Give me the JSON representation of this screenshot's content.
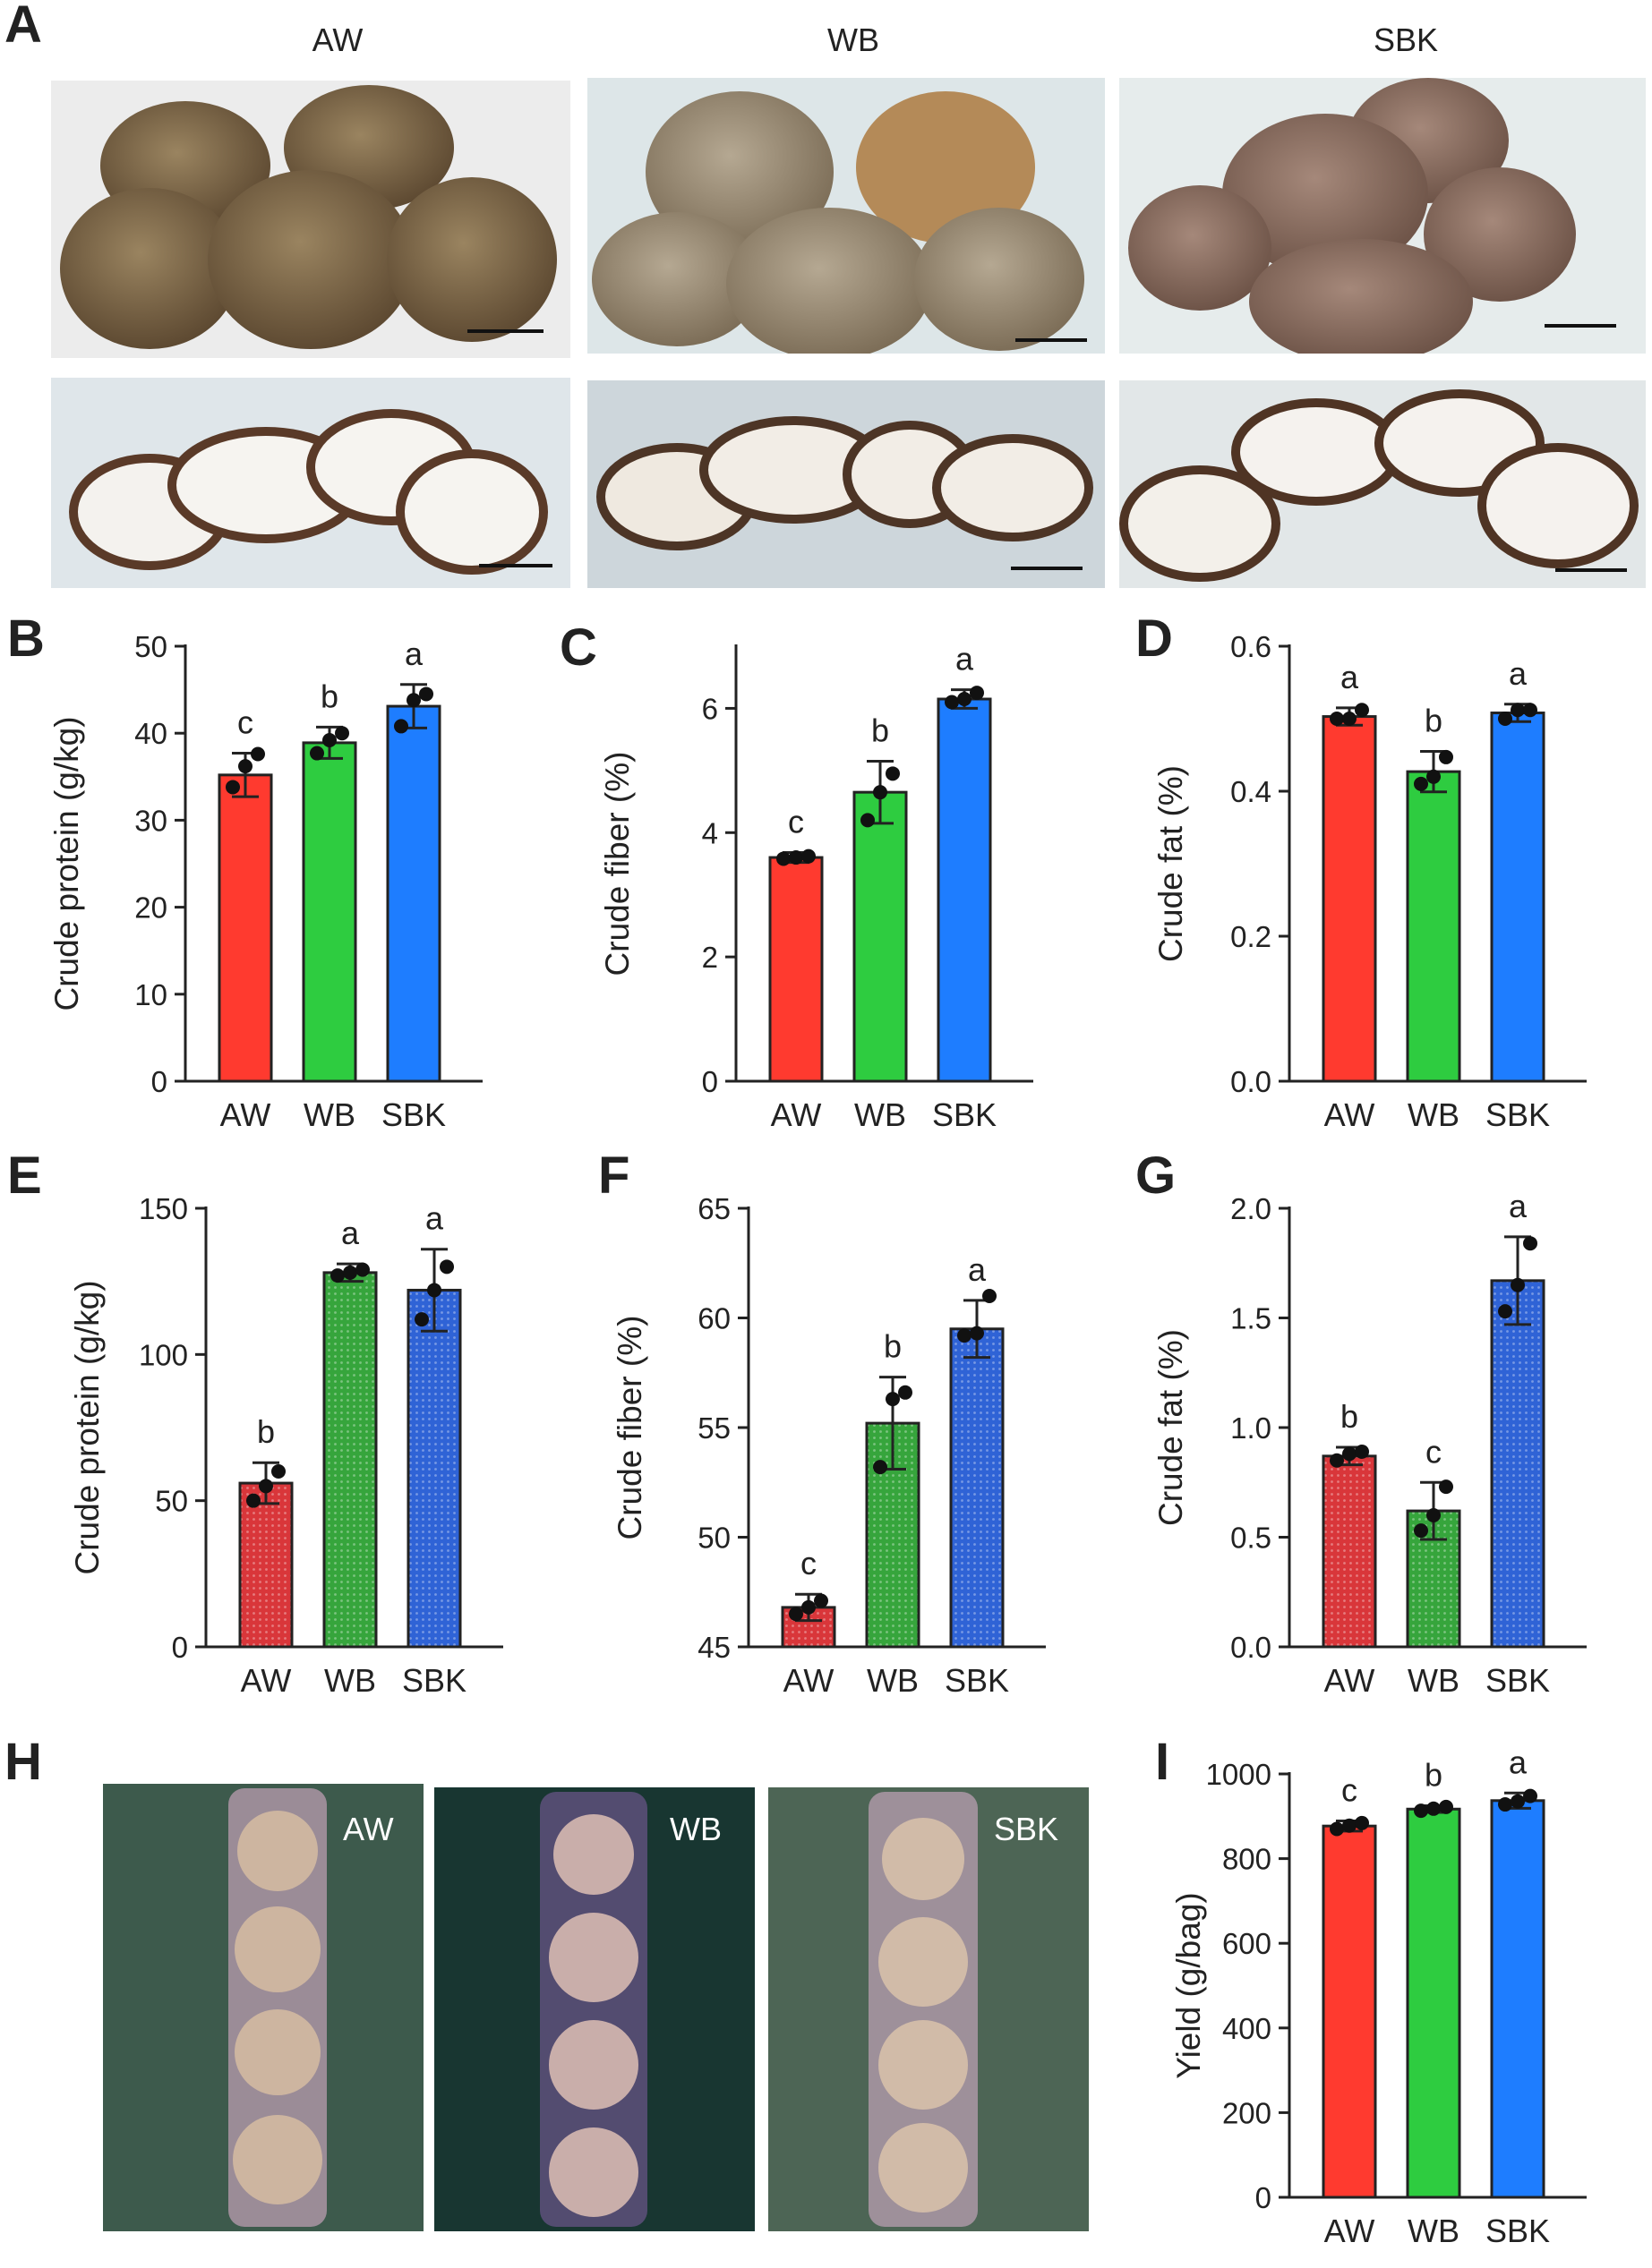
{
  "groups": [
    "AW",
    "WB",
    "SBK"
  ],
  "panel_letters": {
    "A": "A",
    "B": "B",
    "C": "C",
    "D": "D",
    "E": "E",
    "F": "F",
    "G": "G",
    "H": "H",
    "I": "I"
  },
  "colors": {
    "AW": "#ff3a2f",
    "WB": "#2ecc40",
    "SBK": "#1e7dff",
    "AW_dark": "#d9363a",
    "WB_dark": "#36a53c",
    "SBK_dark": "#2f63d6"
  },
  "photo_labels": {
    "AW": "AW",
    "WB": "WB",
    "SBK": "SBK"
  },
  "chart_data": [
    {
      "id": "B",
      "type": "bar",
      "categories": [
        "AW",
        "WB",
        "SBK"
      ],
      "values": [
        35.2,
        38.9,
        43.1
      ],
      "errors": [
        2.5,
        1.8,
        2.5
      ],
      "points": [
        [
          33.8,
          36.2,
          37.6
        ],
        [
          37.7,
          39.2,
          40.0
        ],
        [
          40.8,
          43.8,
          44.5
        ]
      ],
      "letters": [
        "c",
        "b",
        "a"
      ],
      "ylabel": "Crude protein  (g/kg)",
      "ylim": [
        0,
        50
      ],
      "yticks": [
        0,
        10,
        20,
        30,
        40,
        50
      ],
      "pattern": false
    },
    {
      "id": "C",
      "type": "bar",
      "categories": [
        "AW",
        "WB",
        "SBK"
      ],
      "values": [
        3.6,
        4.65,
        6.15
      ],
      "errors": [
        0.08,
        0.5,
        0.15
      ],
      "points": [
        [
          3.58,
          3.6,
          3.62
        ],
        [
          4.2,
          4.65,
          4.95
        ],
        [
          6.1,
          6.15,
          6.25
        ]
      ],
      "letters": [
        "c",
        "b",
        "a"
      ],
      "ylabel": "Crude fiber  (%)",
      "ylim": [
        0,
        7
      ],
      "yticks": [
        0,
        2,
        4,
        6
      ],
      "pattern": false
    },
    {
      "id": "D",
      "type": "bar",
      "categories": [
        "AW",
        "WB",
        "SBK"
      ],
      "values": [
        0.503,
        0.427,
        0.508
      ],
      "errors": [
        0.012,
        0.028,
        0.012
      ],
      "points": [
        [
          0.5,
          0.5,
          0.512
        ],
        [
          0.41,
          0.42,
          0.447
        ],
        [
          0.5,
          0.512,
          0.512
        ]
      ],
      "letters": [
        "a",
        "b",
        "a"
      ],
      "ylabel": "Crude fat  (%)",
      "ylim": [
        0,
        0.6
      ],
      "yticks": [
        0.0,
        0.2,
        0.4,
        0.6
      ],
      "ytick_decimals": 1,
      "pattern": false
    },
    {
      "id": "E",
      "type": "bar",
      "categories": [
        "AW",
        "WB",
        "SBK"
      ],
      "values": [
        56,
        128,
        122
      ],
      "errors": [
        7,
        3,
        14
      ],
      "points": [
        [
          50,
          55,
          60
        ],
        [
          127,
          128,
          129
        ],
        [
          112,
          122,
          130
        ]
      ],
      "letters": [
        "b",
        "a",
        "a"
      ],
      "ylabel": "Crude protein  (g/kg)",
      "ylim": [
        0,
        150
      ],
      "yticks": [
        0,
        50,
        100,
        150
      ],
      "pattern": true
    },
    {
      "id": "F",
      "type": "bar",
      "categories": [
        "AW",
        "WB",
        "SBK"
      ],
      "values": [
        46.8,
        55.2,
        59.5
      ],
      "errors": [
        0.6,
        2.1,
        1.3
      ],
      "points": [
        [
          46.5,
          46.8,
          47.1
        ],
        [
          53.2,
          56.3,
          56.6
        ],
        [
          59.2,
          59.3,
          61.0
        ]
      ],
      "letters": [
        "c",
        "b",
        "a"
      ],
      "ylabel": "Crude fiber  (%)",
      "ylim": [
        45,
        65
      ],
      "yticks": [
        45,
        50,
        55,
        60,
        65
      ],
      "pattern": true
    },
    {
      "id": "G",
      "type": "bar",
      "categories": [
        "AW",
        "WB",
        "SBK"
      ],
      "values": [
        0.87,
        0.62,
        1.67
      ],
      "errors": [
        0.04,
        0.13,
        0.2
      ],
      "points": [
        [
          0.85,
          0.88,
          0.89
        ],
        [
          0.53,
          0.6,
          0.73
        ],
        [
          1.53,
          1.65,
          1.84
        ]
      ],
      "letters": [
        "b",
        "c",
        "a"
      ],
      "ylabel": "Crude fat  (%)",
      "ylim": [
        0,
        2
      ],
      "yticks": [
        0.0,
        0.5,
        1.0,
        1.5,
        2.0
      ],
      "ytick_decimals": 1,
      "pattern": true
    },
    {
      "id": "I",
      "type": "bar",
      "categories": [
        "AW",
        "WB",
        "SBK"
      ],
      "values": [
        877,
        917,
        937
      ],
      "errors": [
        12,
        8,
        18
      ],
      "points": [
        [
          870,
          878,
          884
        ],
        [
          913,
          918,
          922
        ],
        [
          928,
          935,
          948
        ]
      ],
      "letters": [
        "c",
        "b",
        "a"
      ],
      "ylabel": "Yield (g/bag)",
      "ylim": [
        0,
        1000
      ],
      "yticks": [
        0,
        200,
        400,
        600,
        800,
        1000
      ],
      "pattern": false
    }
  ]
}
